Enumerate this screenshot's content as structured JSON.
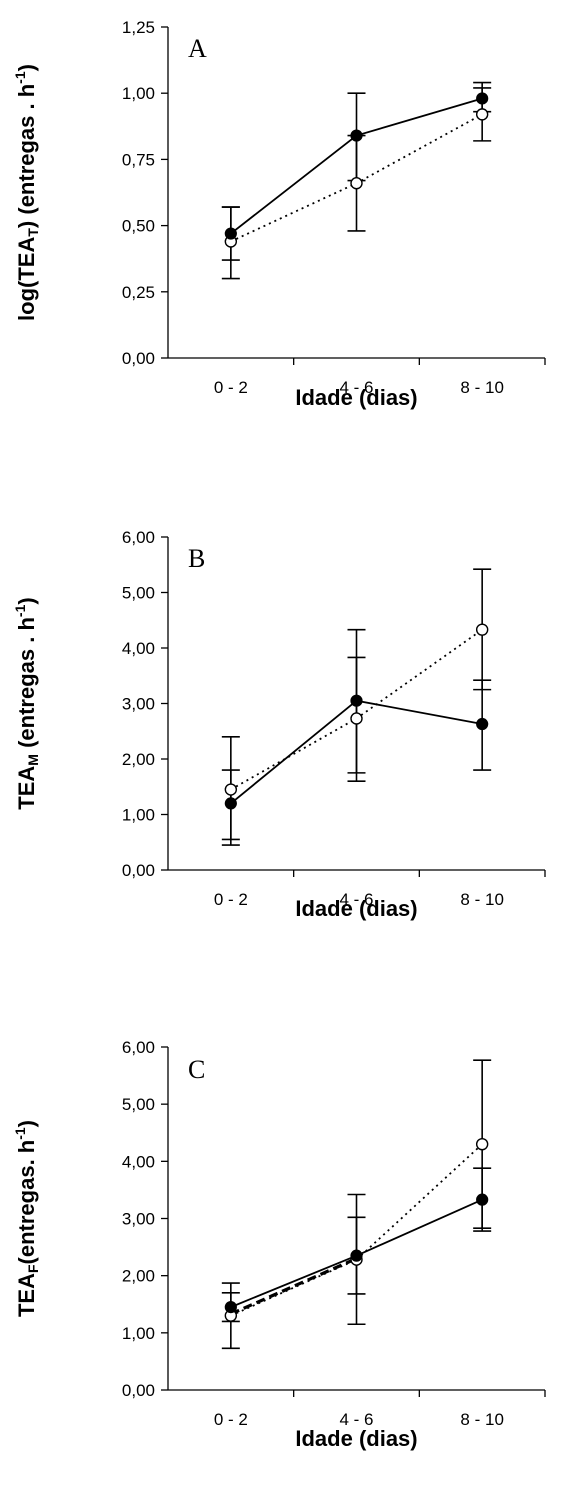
{
  "chart_data": [
    {
      "type": "line",
      "panel_label": "A",
      "categories": [
        "0 - 2",
        "4 - 6",
        "8 - 10"
      ],
      "xlabel": "Idade (dias)",
      "ylabel_prefix": "log(TEA",
      "ylabel_subscript": "T",
      "ylabel_suffix": ") (entregas . h",
      "ylabel_superscript": "-1",
      "ylabel_close": ")",
      "ylim": [
        0,
        1.25
      ],
      "yticks": [
        "0,00",
        "0,25",
        "0,50",
        "0,75",
        "1,00",
        "1,25"
      ],
      "grid": false,
      "series": [
        {
          "marker": "filled",
          "line": "solid",
          "values": [
            0.47,
            0.84,
            0.98
          ],
          "err_low": [
            0.37,
            0.67,
            0.93
          ],
          "err_high": [
            0.57,
            1.0,
            1.04
          ]
        },
        {
          "marker": "open",
          "line": "dotted",
          "values": [
            0.44,
            0.66,
            0.92
          ],
          "err_low": [
            0.3,
            0.48,
            0.82
          ],
          "err_high": [
            0.57,
            0.84,
            1.02
          ]
        }
      ]
    },
    {
      "type": "line",
      "panel_label": "B",
      "categories": [
        "0 - 2",
        "4 - 6",
        "8 - 10"
      ],
      "xlabel": "Idade (dias)",
      "ylabel_prefix": "TEA",
      "ylabel_subscript": "M",
      "ylabel_suffix": " (entregas . h",
      "ylabel_superscript": "-1",
      "ylabel_close": ")",
      "ylim": [
        0,
        6
      ],
      "yticks": [
        "0,00",
        "1,00",
        "2,00",
        "3,00",
        "4,00",
        "5,00",
        "6,00"
      ],
      "grid": false,
      "series": [
        {
          "marker": "filled",
          "line": "solid",
          "values": [
            1.2,
            3.05,
            2.63
          ],
          "err_low": [
            0.55,
            1.75,
            1.8
          ],
          "err_high": [
            1.8,
            4.33,
            3.42
          ]
        },
        {
          "marker": "open",
          "line": "dotted",
          "values": [
            1.45,
            2.73,
            4.33
          ],
          "err_low": [
            0.45,
            1.6,
            3.25
          ],
          "err_high": [
            2.4,
            3.83,
            5.42
          ]
        }
      ]
    },
    {
      "type": "line",
      "panel_label": "C",
      "categories": [
        "0 - 2",
        "4 - 6",
        "8 - 10"
      ],
      "xlabel": "Idade (dias)",
      "ylabel_prefix": "TEA",
      "ylabel_subscript": "F",
      "ylabel_suffix": "(entregas. h",
      "ylabel_superscript": "-1",
      "ylabel_close": ")",
      "ylim": [
        0,
        6
      ],
      "yticks": [
        "0,00",
        "1,00",
        "2,00",
        "3,00",
        "4,00",
        "5,00",
        "6,00"
      ],
      "grid": false,
      "series": [
        {
          "marker": "filled",
          "line": "solid",
          "values": [
            1.45,
            2.35,
            3.33
          ],
          "err_low": [
            1.2,
            1.68,
            2.78
          ],
          "err_high": [
            1.7,
            3.02,
            3.88
          ]
        },
        {
          "marker": "open",
          "line": "dotted",
          "values": [
            1.3,
            2.28,
            4.3
          ],
          "err_low": [
            0.73,
            1.15,
            2.83
          ],
          "err_high": [
            1.87,
            3.42,
            5.77
          ]
        }
      ],
      "dashed_segment": {
        "from_index": 0,
        "to_index": 1,
        "values": [
          1.33,
          2.3
        ]
      }
    }
  ]
}
